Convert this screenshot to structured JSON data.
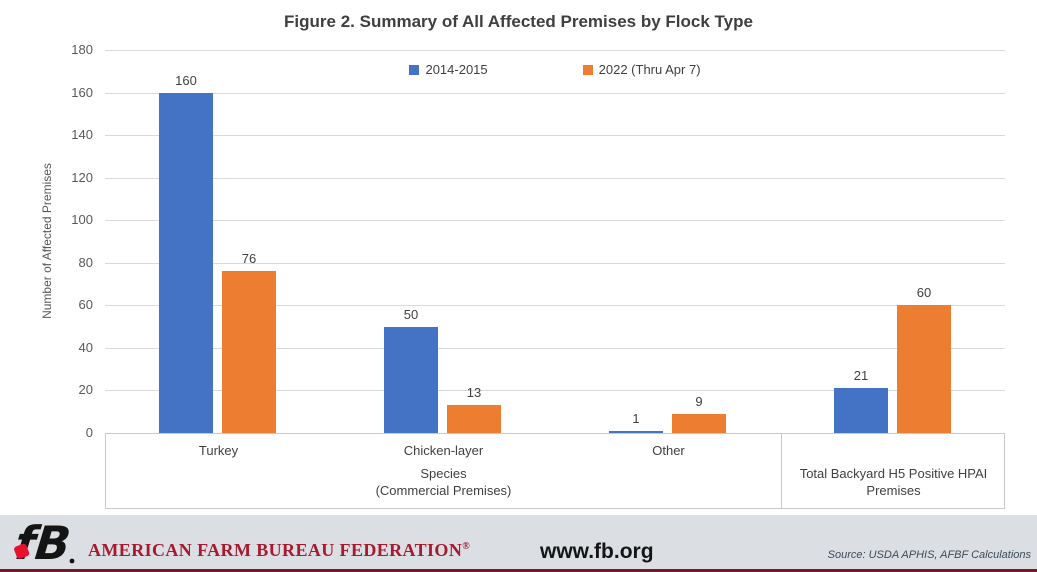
{
  "chart_data": {
    "type": "bar",
    "title": "Figure 2. Summary of All Affected Premises by Flock Type",
    "ylabel": "Number of Affected Premises",
    "ylim": [
      0,
      180
    ],
    "ytick_step": 20,
    "grid": true,
    "legend_position": "top-center",
    "bar_value_labels": true,
    "categories": [
      "Turkey",
      "Chicken-layer",
      "Other",
      "Total Backyard H5 Positive HPAI Premises"
    ],
    "group_label": "Species\n(Commercial Premises)",
    "group_span": [
      0,
      2
    ],
    "series": [
      {
        "name": "2014-2015",
        "color": "#4472C4",
        "values": [
          160,
          50,
          1,
          21
        ]
      },
      {
        "name": "2022 (Thru Apr 7)",
        "color": "#ED7D31",
        "values": [
          76,
          13,
          9,
          60
        ]
      }
    ]
  },
  "colors": {
    "gridline": "#D9D9D9",
    "axis_border": "#C9C9C9",
    "title_text": "#3F3F3F",
    "tick_text": "#595959"
  },
  "footer": {
    "brand": "AMERICAN FARM BUREAU FEDERATION",
    "reg_mark": "®",
    "url": "www.fb.org",
    "source": "Source: USDA APHIS, AFBF Calculations",
    "logo_icon": "afbf-fb-logo",
    "bar_color": "#dbdfe4",
    "accent_red": "#A6192E",
    "bottom_line_color": "#6E1E23"
  }
}
